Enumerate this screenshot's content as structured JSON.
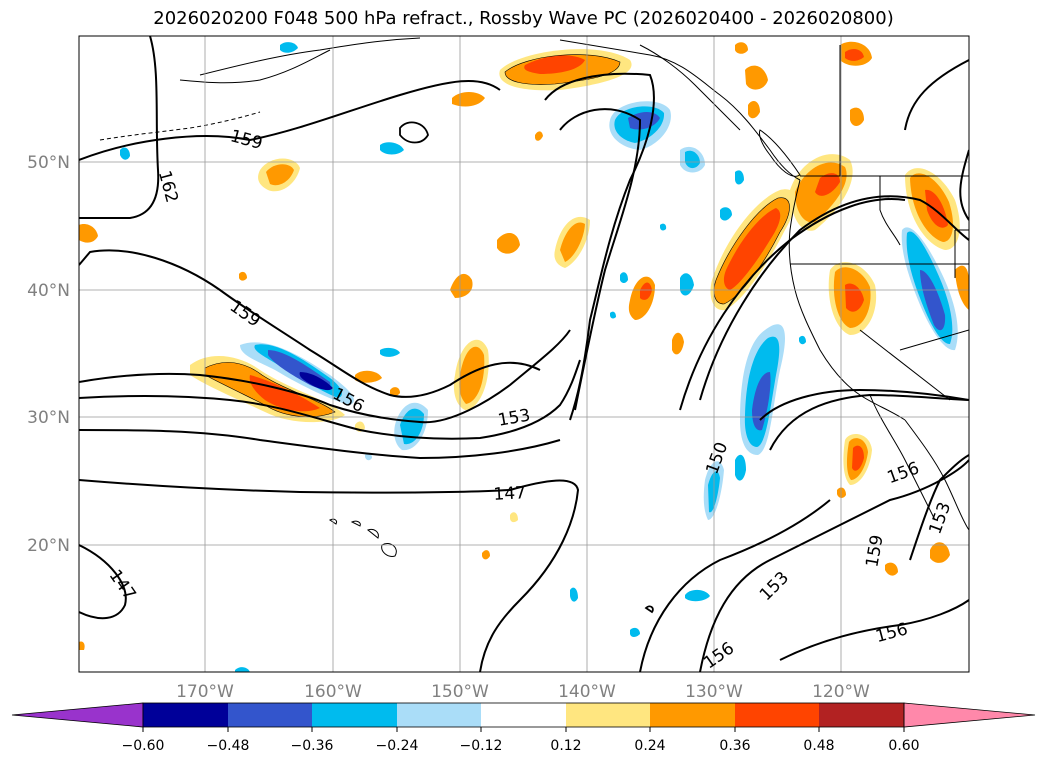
{
  "title": "2026020200 F048 500 hPa refract., Rossby Wave PC (2026020400 - 2026020800)",
  "lat_labels": [
    "50°N",
    "40°N",
    "30°N",
    "20°N"
  ],
  "lon_labels": [
    "170°W",
    "160°W",
    "150°W",
    "140°W",
    "130°W",
    "120°W"
  ],
  "contour_labels": [
    "159",
    "162",
    "159",
    "156",
    "153",
    "147",
    "150",
    "147",
    "156",
    "153",
    "159",
    "153",
    "156",
    "156"
  ],
  "colorbar": {
    "ticks": [
      "−0.60",
      "−0.48",
      "−0.36",
      "−0.24",
      "−0.12",
      "0.12",
      "0.24",
      "0.36",
      "0.48",
      "0.60"
    ],
    "colors": [
      "#9933cc",
      "#000099",
      "#3355cc",
      "#00bbee",
      "#aaddf8",
      "#ffffff",
      "#ffe680",
      "#ff9900",
      "#ff4400",
      "#b22222",
      "#ff88aa"
    ]
  },
  "shading_colors": {
    "light_yellow": "#ffe680",
    "orange": "#ff9900",
    "red_orange": "#ff4400",
    "dark_red": "#b22222",
    "light_blue": "#aaddf8",
    "cyan": "#00bbee",
    "blue": "#3355cc",
    "navy": "#000099"
  }
}
